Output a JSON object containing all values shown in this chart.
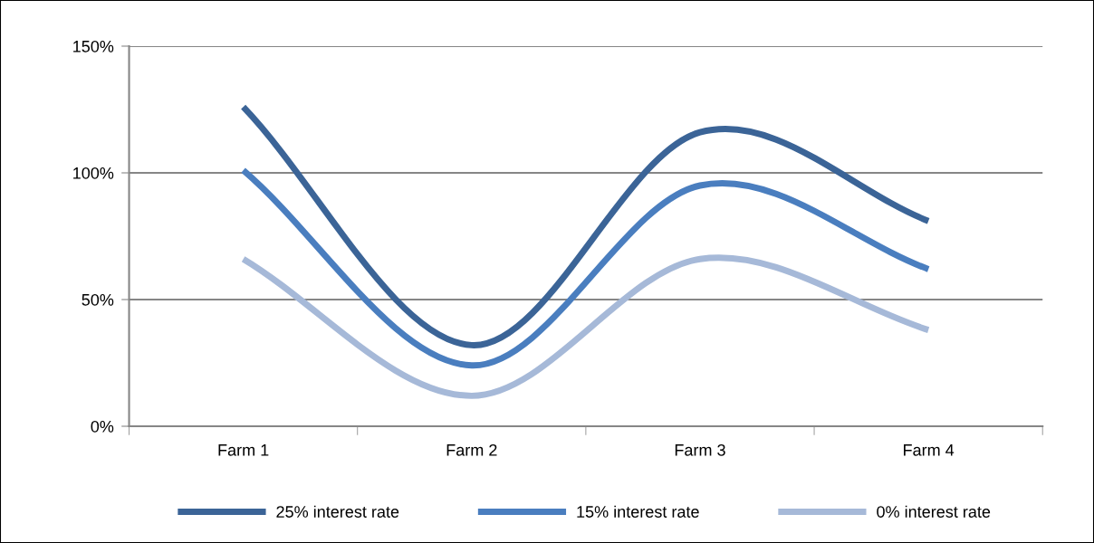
{
  "chart_data": {
    "type": "line",
    "categories": [
      "Farm 1",
      "Farm 2",
      "Farm 3",
      "Farm 4"
    ],
    "series": [
      {
        "name": "25% interest rate",
        "color": "#3b6497",
        "values": [
          126,
          32,
          116,
          81
        ]
      },
      {
        "name": "15% interest rate",
        "color": "#4a7ebf",
        "values": [
          101,
          24,
          95,
          62
        ]
      },
      {
        "name": "0% interest rate",
        "color": "#a6b9d8",
        "values": [
          66,
          12,
          66,
          38
        ]
      }
    ],
    "ylim": [
      0,
      150
    ],
    "yticks": [
      {
        "value": 0,
        "label": "0%"
      },
      {
        "value": 50,
        "label": "50%"
      },
      {
        "value": 100,
        "label": "100%"
      },
      {
        "value": 150,
        "label": "150%"
      }
    ],
    "grid": "y",
    "legend": "bottom",
    "marker": "none",
    "line_style": "solid"
  }
}
